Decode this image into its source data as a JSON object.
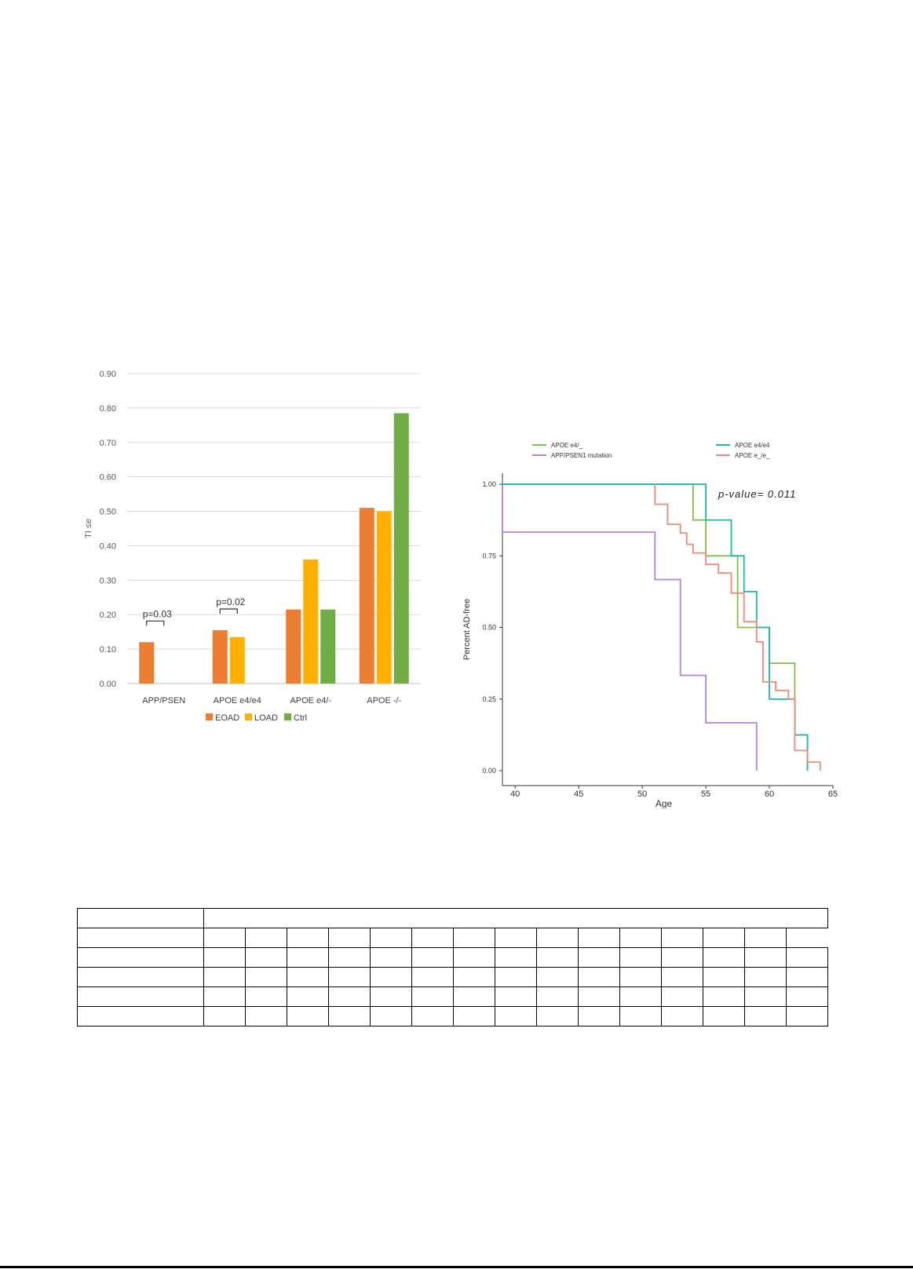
{
  "chart_data": [
    {
      "type": "bar",
      "ylabel": "TI ≤e",
      "ylim": [
        0,
        0.9
      ],
      "yticks": [
        "0.00",
        "0.10",
        "0.20",
        "0.30",
        "0.40",
        "0.50",
        "0.60",
        "0.70",
        "0.80",
        "0.90"
      ],
      "categories": [
        "APP/PSEN",
        "APOE e4/e4",
        "APOE e4/-",
        "APOE -/-"
      ],
      "series": [
        {
          "name": "EOAD",
          "color": "#ED7D31",
          "values": [
            0.12,
            0.155,
            0.215,
            0.51
          ]
        },
        {
          "name": "LOAD",
          "color": "#FFB000",
          "values": [
            null,
            0.135,
            0.36,
            0.5
          ]
        },
        {
          "name": "Ctrl",
          "color": "#70AD47",
          "values": [
            null,
            null,
            0.215,
            0.785
          ]
        }
      ],
      "annotations": [
        {
          "text": "p=0.03",
          "category": 0
        },
        {
          "text": "p=0.02",
          "category": 1
        }
      ],
      "grid": true,
      "legend": "bottom"
    },
    {
      "type": "line",
      "xlabel": "Age",
      "ylabel": "Percent AD-free",
      "xlim": [
        39,
        65
      ],
      "ylim": [
        0,
        1
      ],
      "xticks": [
        "40",
        "45",
        "50",
        "55",
        "60",
        "65"
      ],
      "yticks": [
        "0.00",
        "0.25",
        "0.50",
        "0.75",
        "1.00"
      ],
      "annotation": "p-value= 0.011",
      "legend": "top",
      "series": [
        {
          "name": "APOE e4/_",
          "color": "#7FC241",
          "points": [
            [
              39,
              1.0
            ],
            [
              54,
              1.0
            ],
            [
              54,
              0.875
            ],
            [
              55,
              0.875
            ],
            [
              55,
              0.75
            ],
            [
              57.5,
              0.75
            ],
            [
              57.5,
              0.5
            ],
            [
              60,
              0.5
            ],
            [
              60,
              0.375
            ],
            [
              62,
              0.375
            ],
            [
              62,
              0.125
            ],
            [
              63,
              0.125
            ],
            [
              63,
              0.0
            ]
          ]
        },
        {
          "name": "APP/PSEN1 mutation",
          "color": "#B480E6",
          "points": [
            [
              39,
              1.0
            ],
            [
              39,
              0.833
            ],
            [
              51,
              0.833
            ],
            [
              51,
              0.667
            ],
            [
              53,
              0.667
            ],
            [
              53,
              0.333
            ],
            [
              55,
              0.333
            ],
            [
              55,
              0.167
            ],
            [
              59,
              0.167
            ],
            [
              59,
              0.0
            ]
          ]
        },
        {
          "name": "APOE e4/e4",
          "color": "#1FB6B6",
          "points": [
            [
              39,
              1.0
            ],
            [
              55,
              1.0
            ],
            [
              55,
              0.875
            ],
            [
              57,
              0.875
            ],
            [
              57,
              0.75
            ],
            [
              58,
              0.75
            ],
            [
              58,
              0.625
            ],
            [
              59,
              0.625
            ],
            [
              59,
              0.5
            ],
            [
              60,
              0.5
            ],
            [
              60,
              0.25
            ],
            [
              62,
              0.25
            ],
            [
              62,
              0.125
            ],
            [
              63,
              0.125
            ],
            [
              63,
              0.0
            ]
          ]
        },
        {
          "name": "APOE e_/e_",
          "color": "#F08A78",
          "points": [
            [
              51,
              1.0
            ],
            [
              51,
              0.93
            ],
            [
              52,
              0.93
            ],
            [
              52,
              0.86
            ],
            [
              53,
              0.86
            ],
            [
              53,
              0.83
            ],
            [
              53.5,
              0.83
            ],
            [
              53.5,
              0.79
            ],
            [
              54,
              0.79
            ],
            [
              54,
              0.76
            ],
            [
              55,
              0.76
            ],
            [
              55,
              0.72
            ],
            [
              56,
              0.72
            ],
            [
              56,
              0.69
            ],
            [
              57,
              0.69
            ],
            [
              57,
              0.62
            ],
            [
              58,
              0.62
            ],
            [
              58,
              0.52
            ],
            [
              59,
              0.52
            ],
            [
              59,
              0.45
            ],
            [
              59.5,
              0.45
            ],
            [
              59.5,
              0.31
            ],
            [
              60.5,
              0.31
            ],
            [
              60.5,
              0.28
            ],
            [
              61.5,
              0.28
            ],
            [
              61.5,
              0.25
            ],
            [
              62,
              0.25
            ],
            [
              62,
              0.07
            ],
            [
              63,
              0.07
            ],
            [
              63,
              0.03
            ],
            [
              64,
              0.03
            ],
            [
              64,
              0.0
            ]
          ]
        }
      ]
    }
  ],
  "table": {
    "rows": 5,
    "cells_per_row": 15
  }
}
